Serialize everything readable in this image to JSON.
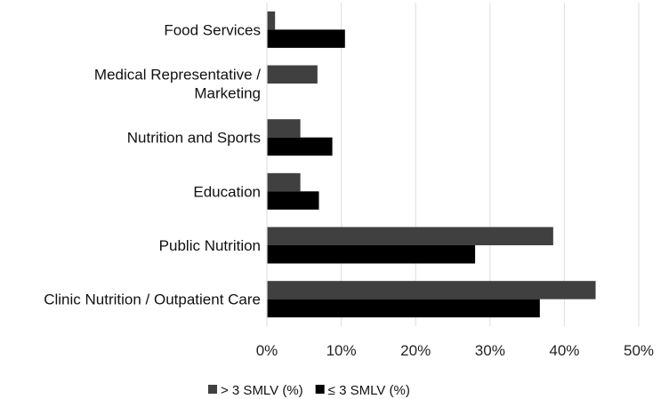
{
  "chart_data": {
    "type": "bar",
    "orientation": "horizontal",
    "categories": [
      "Food Services",
      "Medical Representative / Marketing",
      "Nutrition and Sports",
      "Education",
      "Public Nutrition",
      "Clinic Nutrition / Outpatient Care"
    ],
    "category_label_lines": [
      [
        "Food Services"
      ],
      [
        "Medical Representative /",
        "Marketing"
      ],
      [
        "Nutrition and Sports"
      ],
      [
        "Education"
      ],
      [
        "Public Nutrition"
      ],
      [
        "Clinic Nutrition / Outpatient Care"
      ]
    ],
    "series": [
      {
        "name": "> 3 SMLV (%)",
        "color": "#404040",
        "values": [
          1.1,
          6.8,
          4.5,
          4.5,
          38.5,
          44.2
        ]
      },
      {
        "name": "≤ 3 SMLV (%)",
        "color": "#000000",
        "values": [
          10.5,
          0,
          8.8,
          7.0,
          28.0,
          36.7
        ]
      }
    ],
    "xlim": [
      0,
      50
    ],
    "xticks": [
      "0%",
      "10%",
      "20%",
      "30%",
      "40%",
      "50%"
    ],
    "grid": true,
    "legend_position": "bottom"
  }
}
